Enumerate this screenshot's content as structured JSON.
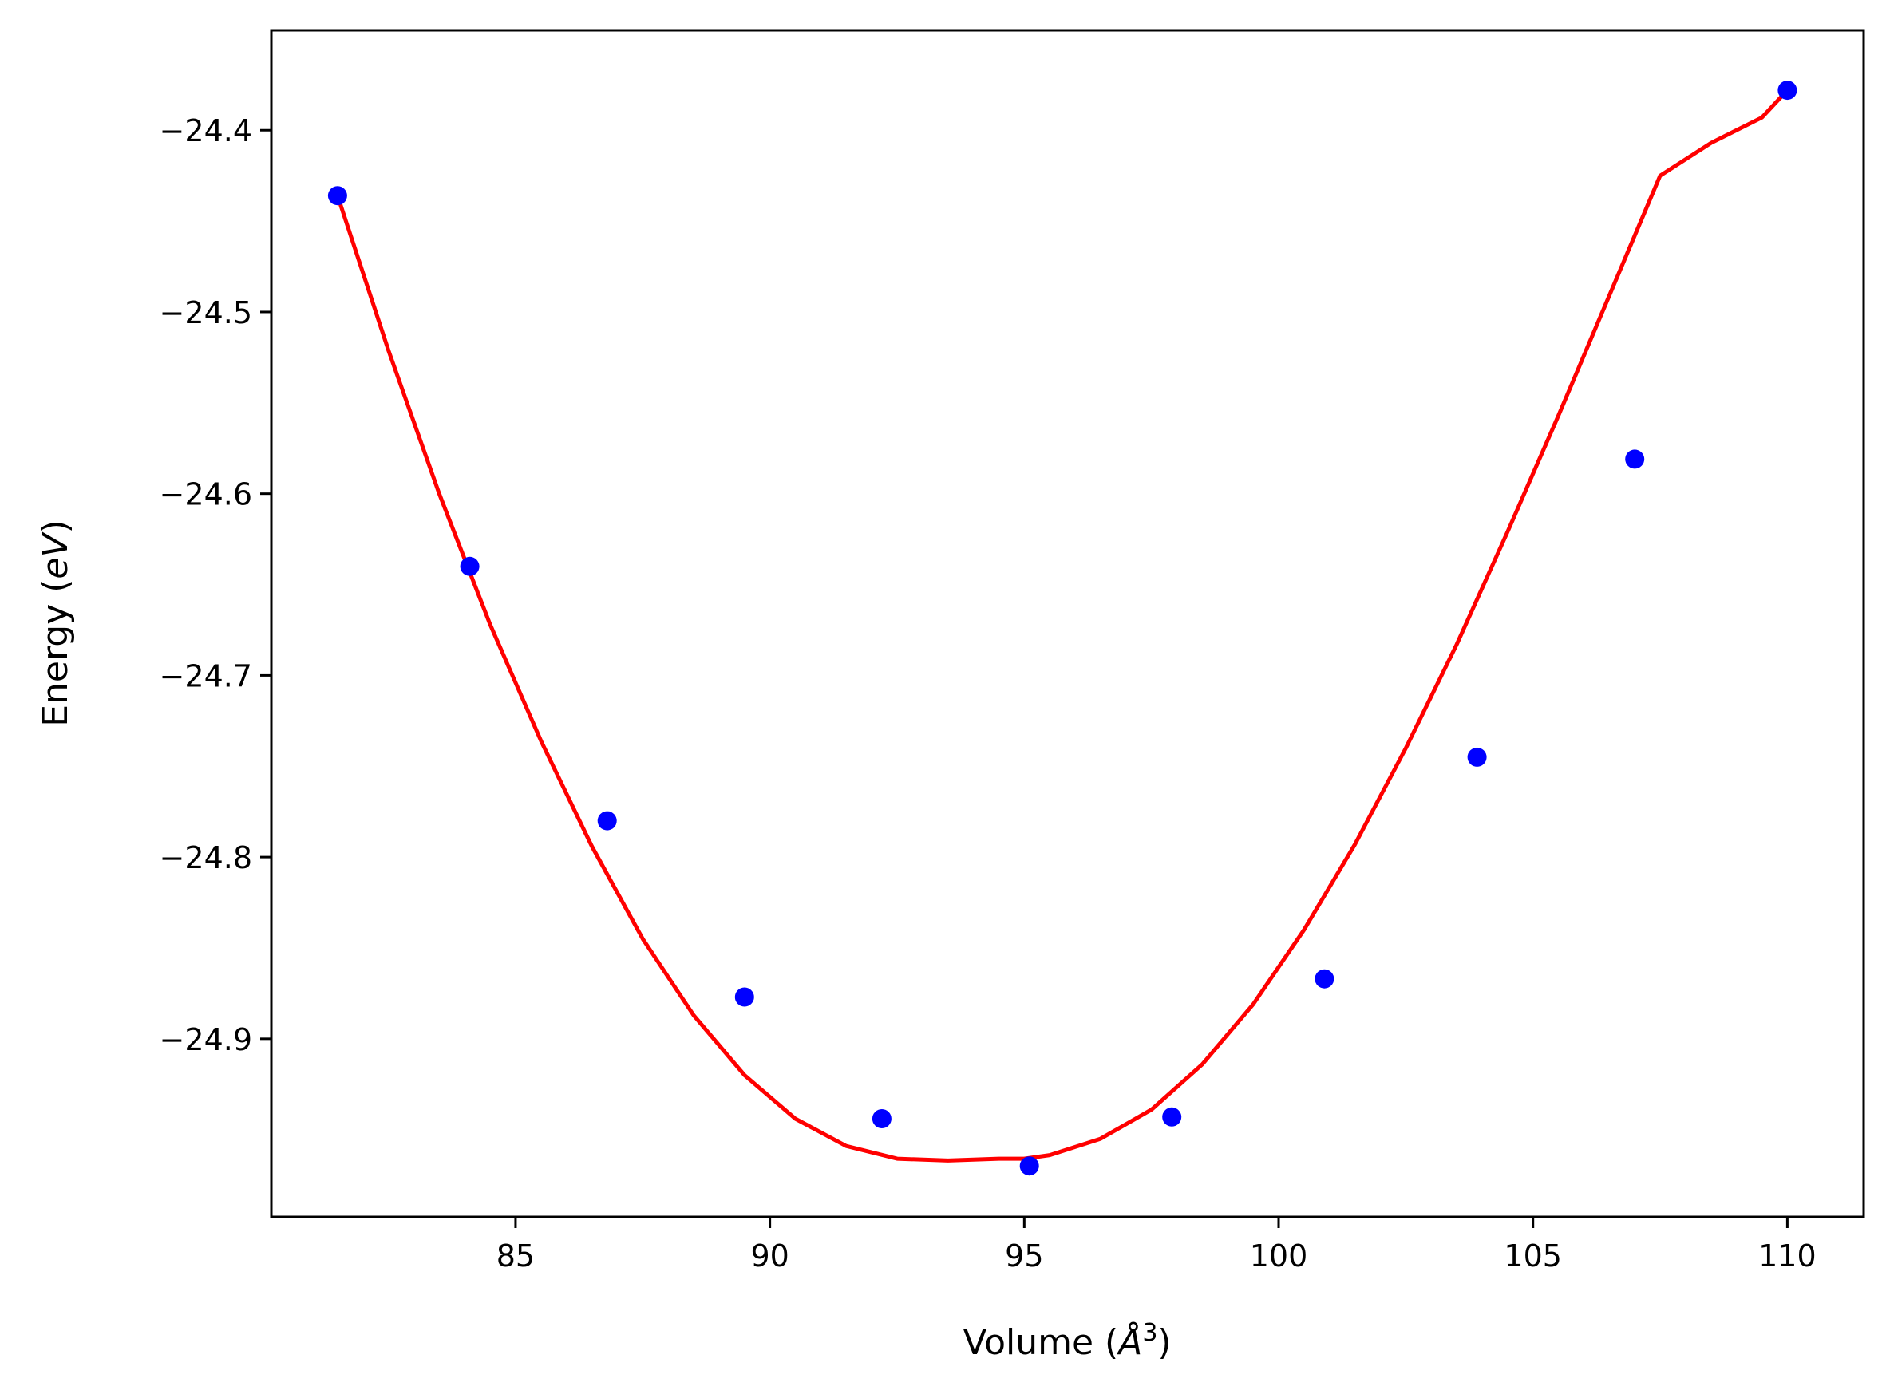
{
  "chart_data": {
    "type": "scatter",
    "title": "",
    "xlabel": {
      "prefix": "Volume (",
      "symbol": "Å",
      "superscript": "3",
      "suffix": ")"
    },
    "ylabel": {
      "prefix": "Energy (",
      "unit": "eV",
      "suffix": ")"
    },
    "xlim": [
      80.2,
      111.5
    ],
    "ylim": [
      -24.998,
      -24.345
    ],
    "xticks": [
      85,
      90,
      95,
      100,
      105,
      110
    ],
    "xtick_labels": [
      "85",
      "90",
      "95",
      "100",
      "105",
      "110"
    ],
    "yticks": [
      -24.4,
      -24.5,
      -24.6,
      -24.7,
      -24.8,
      -24.9
    ],
    "ytick_labels": [
      "−24.4",
      "−24.5",
      "−24.6",
      "−24.7",
      "−24.8",
      "−24.9"
    ],
    "grid": false,
    "legend": "none",
    "series": [
      {
        "kind": "points",
        "color": "#0000ff",
        "x": [
          81.5,
          84.1,
          86.8,
          89.5,
          92.2,
          95.1,
          97.9,
          100.9,
          103.9,
          107.0,
          110.0
        ],
        "y": [
          -24.436,
          -24.64,
          -24.78,
          -24.877,
          -24.944,
          -24.97,
          -24.943,
          -24.867,
          -24.745,
          -24.581,
          -24.378
        ]
      },
      {
        "kind": "fit-curve",
        "color": "#ff0000",
        "x": [
          81.5,
          82.5,
          83.5,
          84.5,
          85.5,
          86.5,
          87.5,
          88.5,
          89.5,
          90.5,
          91.5,
          92.5,
          93.5,
          94.5,
          95.0,
          95.5,
          96.5,
          97.5,
          98.5,
          99.5,
          100.5,
          101.5,
          102.5,
          103.5,
          104.5,
          105.5,
          106.5,
          107.5,
          108.5,
          109.5,
          110.0
        ],
        "y": [
          -24.436,
          -24.521,
          -24.6,
          -24.672,
          -24.736,
          -24.794,
          -24.845,
          -24.887,
          -24.92,
          -24.944,
          -24.959,
          -24.966,
          -24.967,
          -24.966,
          -24.966,
          -24.964,
          -24.955,
          -24.939,
          -24.914,
          -24.881,
          -24.84,
          -24.793,
          -24.74,
          -24.683,
          -24.621,
          -24.557,
          -24.491,
          -24.425,
          -24.407,
          -24.393,
          -24.378
        ]
      }
    ]
  }
}
